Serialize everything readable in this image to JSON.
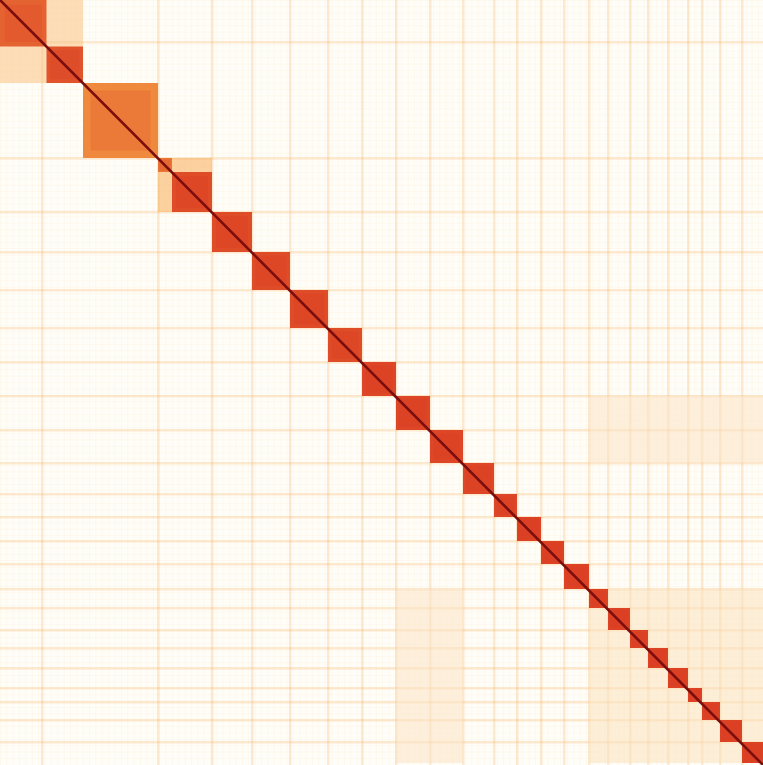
{
  "chart_data": {
    "type": "heatmap",
    "title": "",
    "xlabel": "",
    "ylabel": "",
    "grid": false,
    "colors": {
      "background": "#fffdf8",
      "low": "#fdf0dc",
      "mid": "#f6a546",
      "high": "#d7301f",
      "diagonal": "#7a0d0d"
    },
    "blocks": [
      {
        "start": 0.0,
        "end": 46.5,
        "intensity": 0.78
      },
      {
        "start": 46.5,
        "end": 83.0,
        "intensity": 0.85
      },
      {
        "start": 83.0,
        "end": 158.0,
        "intensity": 0.62
      },
      {
        "start": 158.0,
        "end": 172.0,
        "intensity": 0.7
      },
      {
        "start": 172.0,
        "end": 212.0,
        "intensity": 0.88
      },
      {
        "start": 212.0,
        "end": 252.0,
        "intensity": 0.88
      },
      {
        "start": 252.0,
        "end": 290.0,
        "intensity": 0.88
      },
      {
        "start": 290.0,
        "end": 328.0,
        "intensity": 0.88
      },
      {
        "start": 328.0,
        "end": 362.0,
        "intensity": 0.88
      },
      {
        "start": 362.0,
        "end": 396.0,
        "intensity": 0.9
      },
      {
        "start": 396.0,
        "end": 430.0,
        "intensity": 0.9
      },
      {
        "start": 430.0,
        "end": 463.0,
        "intensity": 0.9
      },
      {
        "start": 463.0,
        "end": 494.0,
        "intensity": 0.9
      },
      {
        "start": 494.0,
        "end": 517.0,
        "intensity": 0.9
      },
      {
        "start": 517.0,
        "end": 541.0,
        "intensity": 0.92
      },
      {
        "start": 541.0,
        "end": 564.0,
        "intensity": 0.92
      },
      {
        "start": 564.0,
        "end": 589.0,
        "intensity": 0.92
      },
      {
        "start": 589.0,
        "end": 608.0,
        "intensity": 0.92
      },
      {
        "start": 608.0,
        "end": 630.0,
        "intensity": 0.92
      },
      {
        "start": 630.0,
        "end": 648.0,
        "intensity": 0.92
      },
      {
        "start": 648.0,
        "end": 668.0,
        "intensity": 0.92
      },
      {
        "start": 668.0,
        "end": 688.0,
        "intensity": 0.92
      },
      {
        "start": 688.0,
        "end": 702.0,
        "intensity": 0.92
      },
      {
        "start": 702.0,
        "end": 720.0,
        "intensity": 0.92
      },
      {
        "start": 720.0,
        "end": 742.0,
        "intensity": 0.92
      },
      {
        "start": 742.0,
        "end": 763.0,
        "intensity": 0.92
      }
    ],
    "off_diagonal": [
      {
        "row": [
          0,
          46.5
        ],
        "col": [
          46.5,
          83
        ],
        "intensity": 0.3
      },
      {
        "row": [
          46.5,
          83
        ],
        "col": [
          0,
          46.5
        ],
        "intensity": 0.3
      },
      {
        "row": [
          158,
          172
        ],
        "col": [
          172,
          212
        ],
        "intensity": 0.45
      },
      {
        "row": [
          172,
          212
        ],
        "col": [
          158,
          172
        ],
        "intensity": 0.45
      },
      {
        "row": [
          589,
          763
        ],
        "col": [
          589,
          763
        ],
        "intensity": 0.1
      },
      {
        "row": [
          396,
          463
        ],
        "col": [
          589,
          763
        ],
        "intensity": 0.08
      },
      {
        "row": [
          589,
          763
        ],
        "col": [
          396,
          463
        ],
        "intensity": 0.08
      }
    ],
    "stripes": [
      42,
      158,
      212,
      252,
      290,
      328,
      362,
      396,
      430,
      463,
      494,
      517,
      541,
      564,
      589,
      608,
      630,
      648,
      668,
      688,
      702,
      720,
      742
    ]
  }
}
